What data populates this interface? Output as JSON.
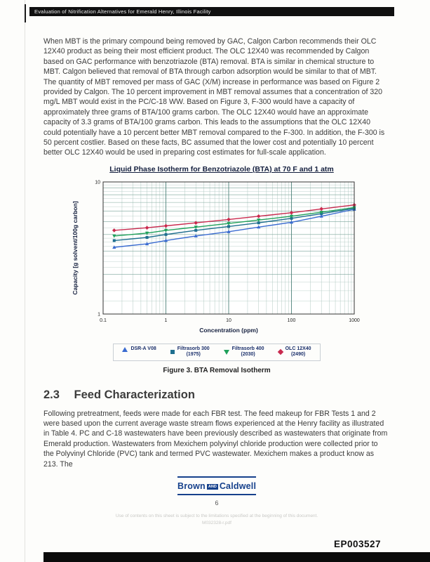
{
  "header": {
    "title": "Evaluation of Nitrification Alternatives for Emerald Henry, Illinois Facility"
  },
  "content": {
    "paragraph1": "When MBT is the primary compound being removed by GAC, Calgon Carbon recommends their OLC 12X40 product as being their most efficient product. The OLC 12X40 was recommended by Calgon based on GAC performance with benzotriazole (BTA) removal. BTA is similar in chemical structure to MBT. Calgon believed that removal of BTA through carbon adsorption would be similar to that of MBT. The quantity of MBT removed per mass of GAC (X/M) increase in performance was based on Figure 2 provided by Calgon. The 10 percent improvement in MBT removal assumes that a concentration of 320 mg/L MBT would exist in the PC/C-18 WW. Based on Figure 3, F-300 would have a capacity of approximately three grams of BTA/100 grams carbon. The OLC 12X40 would have an approximate capacity of 3.3 grams of BTA/100 grams carbon. This leads to the assumptions that the OLC 12X40 could potentially have a 10 percent better MBT removal compared to the F-300. In addition, the F-300 is 50 percent costlier. Based on these facts, BC assumed that the lower cost and potentially 10 percent better OLC 12X40 would be used in preparing cost estimates for full-scale application.",
    "paragraph2": "Following pretreatment, feeds were made for each FBR test. The feed makeup for FBR Tests 1 and 2 were based upon the current average waste stream flows experienced at the Henry facility as illustrated in Table 4. PC and C-18 wastewaters have been previously described as wastewaters that originate from Emerald production. Wastewaters from Mexichem polyvinyl chloride production were collected prior to the Polyvinyl Chloride (PVC) tank and termed PVC wastewater. Mexichem makes a product know as 213. The"
  },
  "chart_data": {
    "type": "line",
    "title": "Liquid Phase Isotherm for Benzotriazole (BTA) at 70 F and 1 atm",
    "xlabel": "Concentration (ppm)",
    "ylabel": "Capacity [g solvent/100g carbon]",
    "x_scale": "log",
    "y_scale": "log",
    "xlim": [
      0.1,
      1000
    ],
    "ylim": [
      1,
      10
    ],
    "x_ticks": [
      0.1,
      1,
      10,
      100,
      1000
    ],
    "y_ticks": [
      1,
      10
    ],
    "grid": "dense log major+minor, teal",
    "legend_position": "bottom",
    "x": [
      0.15,
      0.5,
      1,
      3,
      10,
      30,
      100,
      300,
      1000
    ],
    "series": [
      {
        "name": "DSR-A  V08",
        "sub": "",
        "color": "#3a6bd0",
        "marker": "triangle-up",
        "values": [
          3.2,
          3.4,
          3.6,
          3.9,
          4.2,
          4.55,
          4.95,
          5.5,
          6.2
        ]
      },
      {
        "name": "Filtrasorb 300",
        "sub": "(1975)",
        "color": "#1f6f8f",
        "marker": "square",
        "values": [
          3.6,
          3.8,
          4.0,
          4.3,
          4.6,
          4.9,
          5.3,
          5.75,
          6.3
        ]
      },
      {
        "name": "Filtrasorb 400",
        "sub": "(2030)",
        "color": "#1fa05a",
        "marker": "triangle-down",
        "values": [
          3.9,
          4.1,
          4.3,
          4.55,
          4.85,
          5.15,
          5.5,
          5.9,
          6.4
        ]
      },
      {
        "name": "OLC 12X40",
        "sub": "(2490)",
        "color": "#c92a4e",
        "marker": "diamond",
        "values": [
          4.3,
          4.5,
          4.65,
          4.9,
          5.2,
          5.5,
          5.85,
          6.25,
          6.7
        ]
      }
    ]
  },
  "figure": {
    "caption": "Figure 3. BTA Removal Isotherm"
  },
  "section": {
    "number": "2.3",
    "title": "Feed Characterization"
  },
  "logo": {
    "brown": "Brown",
    "and": "AND",
    "caldwell": "Caldwell"
  },
  "footer": {
    "page_number": "6",
    "note1": "Use of contents on this sheet is subject to the limitations specified at the beginning of this document.",
    "note2": "M032328-r.pdf"
  },
  "stamp": {
    "text": "EP003527"
  }
}
